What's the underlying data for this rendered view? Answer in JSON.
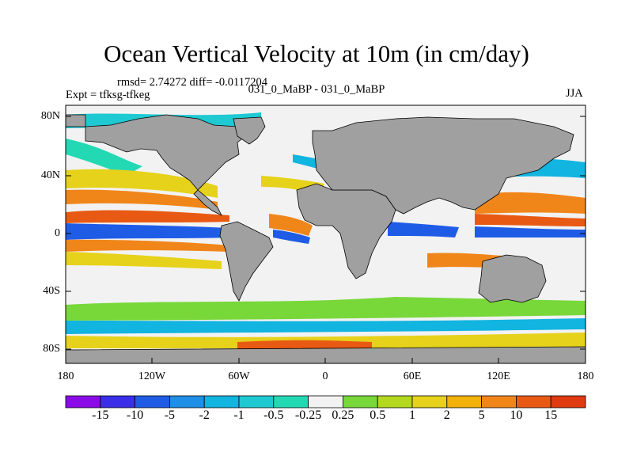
{
  "title": "Ocean Vertical Velocity at 10m (in cm/day)",
  "stats": "rmsd= 2.74272 diff= -0.0117204",
  "expt": "Expt = tfksg-tfkeg",
  "case_label": "031_0_MaBP - 031_0_MaBP",
  "season": "JJA",
  "lat_labels": [
    "80N",
    "40N",
    "0",
    "40S",
    "80S"
  ],
  "lon_labels": [
    "180",
    "120W",
    "60W",
    "0",
    "60E",
    "120E",
    "180"
  ],
  "colorbar": {
    "labels": [
      "-15",
      "-10",
      "-5",
      "-2",
      "-1",
      "-0.5",
      "-0.25",
      "0.25",
      "0.5",
      "1",
      "2",
      "5",
      "10",
      "15"
    ],
    "colors": [
      "#8a0be6",
      "#3b2ee8",
      "#1f5ce6",
      "#1e8ee6",
      "#12b4e0",
      "#1ec9d2",
      "#22d9b4",
      "#f2f2f2",
      "#78d83a",
      "#b4d81e",
      "#e6d21a",
      "#f2b20a",
      "#f0861a",
      "#e85a14",
      "#e03a10"
    ]
  },
  "colors": {
    "land": "#a0a0a0",
    "ocean_bg": "#f2f2f2"
  }
}
